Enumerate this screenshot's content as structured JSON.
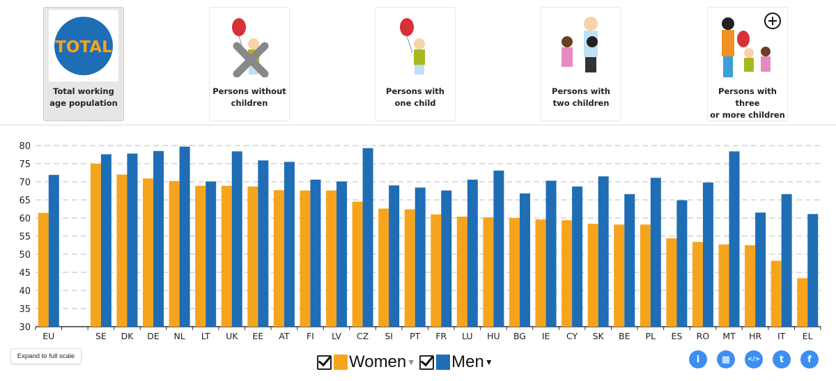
{
  "tiles": [
    {
      "label": "Total working\nage population",
      "badge": "TOTAL",
      "selected": true
    },
    {
      "label": "Persons without\nchildren",
      "selected": false
    },
    {
      "label": "Persons with\none child",
      "selected": false
    },
    {
      "label": "Persons with\ntwo children",
      "selected": false
    },
    {
      "label": "Persons with\nthree\nor more children",
      "selected": false
    }
  ],
  "expand_label": "Expand to full scale",
  "legend": [
    {
      "name": "Women",
      "color": "#f7a41d"
    },
    {
      "name": "Men",
      "color": "#1f6db5"
    }
  ],
  "social": [
    {
      "icon": "info-icon",
      "glyph": "i"
    },
    {
      "icon": "table-icon",
      "glyph": "▦"
    },
    {
      "icon": "embed-icon",
      "glyph": "</>"
    },
    {
      "icon": "twitter-icon",
      "glyph": "t"
    },
    {
      "icon": "facebook-icon",
      "glyph": "f"
    }
  ],
  "chart_data": {
    "type": "bar",
    "title": "",
    "xlabel": "",
    "ylabel": "",
    "ylim": [
      30,
      80
    ],
    "yticks": [
      30,
      35,
      40,
      45,
      50,
      55,
      60,
      65,
      70,
      75,
      80
    ],
    "grid": true,
    "categories": [
      "EU",
      "",
      "SE",
      "DK",
      "DE",
      "NL",
      "LT",
      "UK",
      "EE",
      "AT",
      "FI",
      "LV",
      "CZ",
      "SI",
      "PT",
      "FR",
      "LU",
      "HU",
      "BG",
      "IE",
      "CY",
      "SK",
      "BE",
      "PL",
      "ES",
      "RO",
      "MT",
      "HR",
      "IT",
      "EL"
    ],
    "series": [
      {
        "name": "Women",
        "color": "#f7a41d",
        "values": [
          61.4,
          null,
          75.0,
          72.0,
          70.9,
          70.2,
          68.9,
          68.9,
          68.7,
          67.7,
          67.6,
          67.6,
          64.5,
          62.6,
          62.4,
          61.0,
          60.4,
          60.2,
          60.0,
          59.6,
          59.4,
          58.4,
          58.2,
          58.2,
          54.4,
          53.4,
          52.7,
          52.5,
          48.2,
          43.4
        ]
      },
      {
        "name": "Men",
        "color": "#1f6db5",
        "values": [
          71.9,
          null,
          77.6,
          77.8,
          78.5,
          79.7,
          70.1,
          78.4,
          75.9,
          75.5,
          70.6,
          70.1,
          79.3,
          69.0,
          68.4,
          67.6,
          70.6,
          73.1,
          66.8,
          70.3,
          68.7,
          71.5,
          66.6,
          71.1,
          64.9,
          69.8,
          78.4,
          61.5,
          66.6,
          61.1
        ]
      }
    ]
  }
}
